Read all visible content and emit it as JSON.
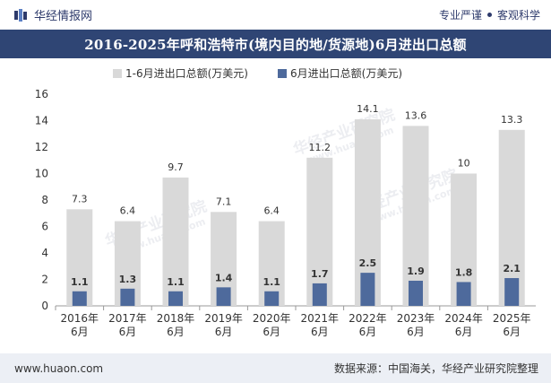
{
  "header": {
    "brand": "华经情报网",
    "slogan_left": "专业严谨",
    "slogan_right": "客观科学"
  },
  "watermark": {
    "text": "华经产业研究院",
    "url": "www.huaon.com"
  },
  "chart_data": {
    "type": "bar",
    "title": "2016-2025年呼和浩特市(境内目的地/货源地)6月进出口总额",
    "categories": [
      [
        "2016年",
        "6月"
      ],
      [
        "2017年",
        "6月"
      ],
      [
        "2018年",
        "6月"
      ],
      [
        "2019年",
        "6月"
      ],
      [
        "2020年",
        "6月"
      ],
      [
        "2021年",
        "6月"
      ],
      [
        "2022年",
        "6月"
      ],
      [
        "2023年",
        "6月"
      ],
      [
        "2024年",
        "6月"
      ],
      [
        "2025年",
        "6月"
      ]
    ],
    "series": [
      {
        "name": "1-6月进出口总额(万美元)",
        "color": "#d9d9d9",
        "values": [
          7.3,
          6.4,
          9.7,
          7.1,
          6.4,
          11.2,
          14.1,
          13.6,
          10,
          13.3
        ]
      },
      {
        "name": "6月进出口总额(万美元)",
        "color": "#4e6a9c",
        "values": [
          1.1,
          1.3,
          1.1,
          1.4,
          1.1,
          1.7,
          2.5,
          1.9,
          1.8,
          2.1
        ]
      }
    ],
    "ylim": [
      0,
      16
    ],
    "yticks": [
      0,
      2,
      4,
      6,
      8,
      10,
      12,
      14,
      16
    ],
    "legend_position": "top-center",
    "grid": false
  },
  "footer": {
    "website": "www.huaon.com",
    "source": "数据来源：中国海关，华经产业研究院整理"
  }
}
